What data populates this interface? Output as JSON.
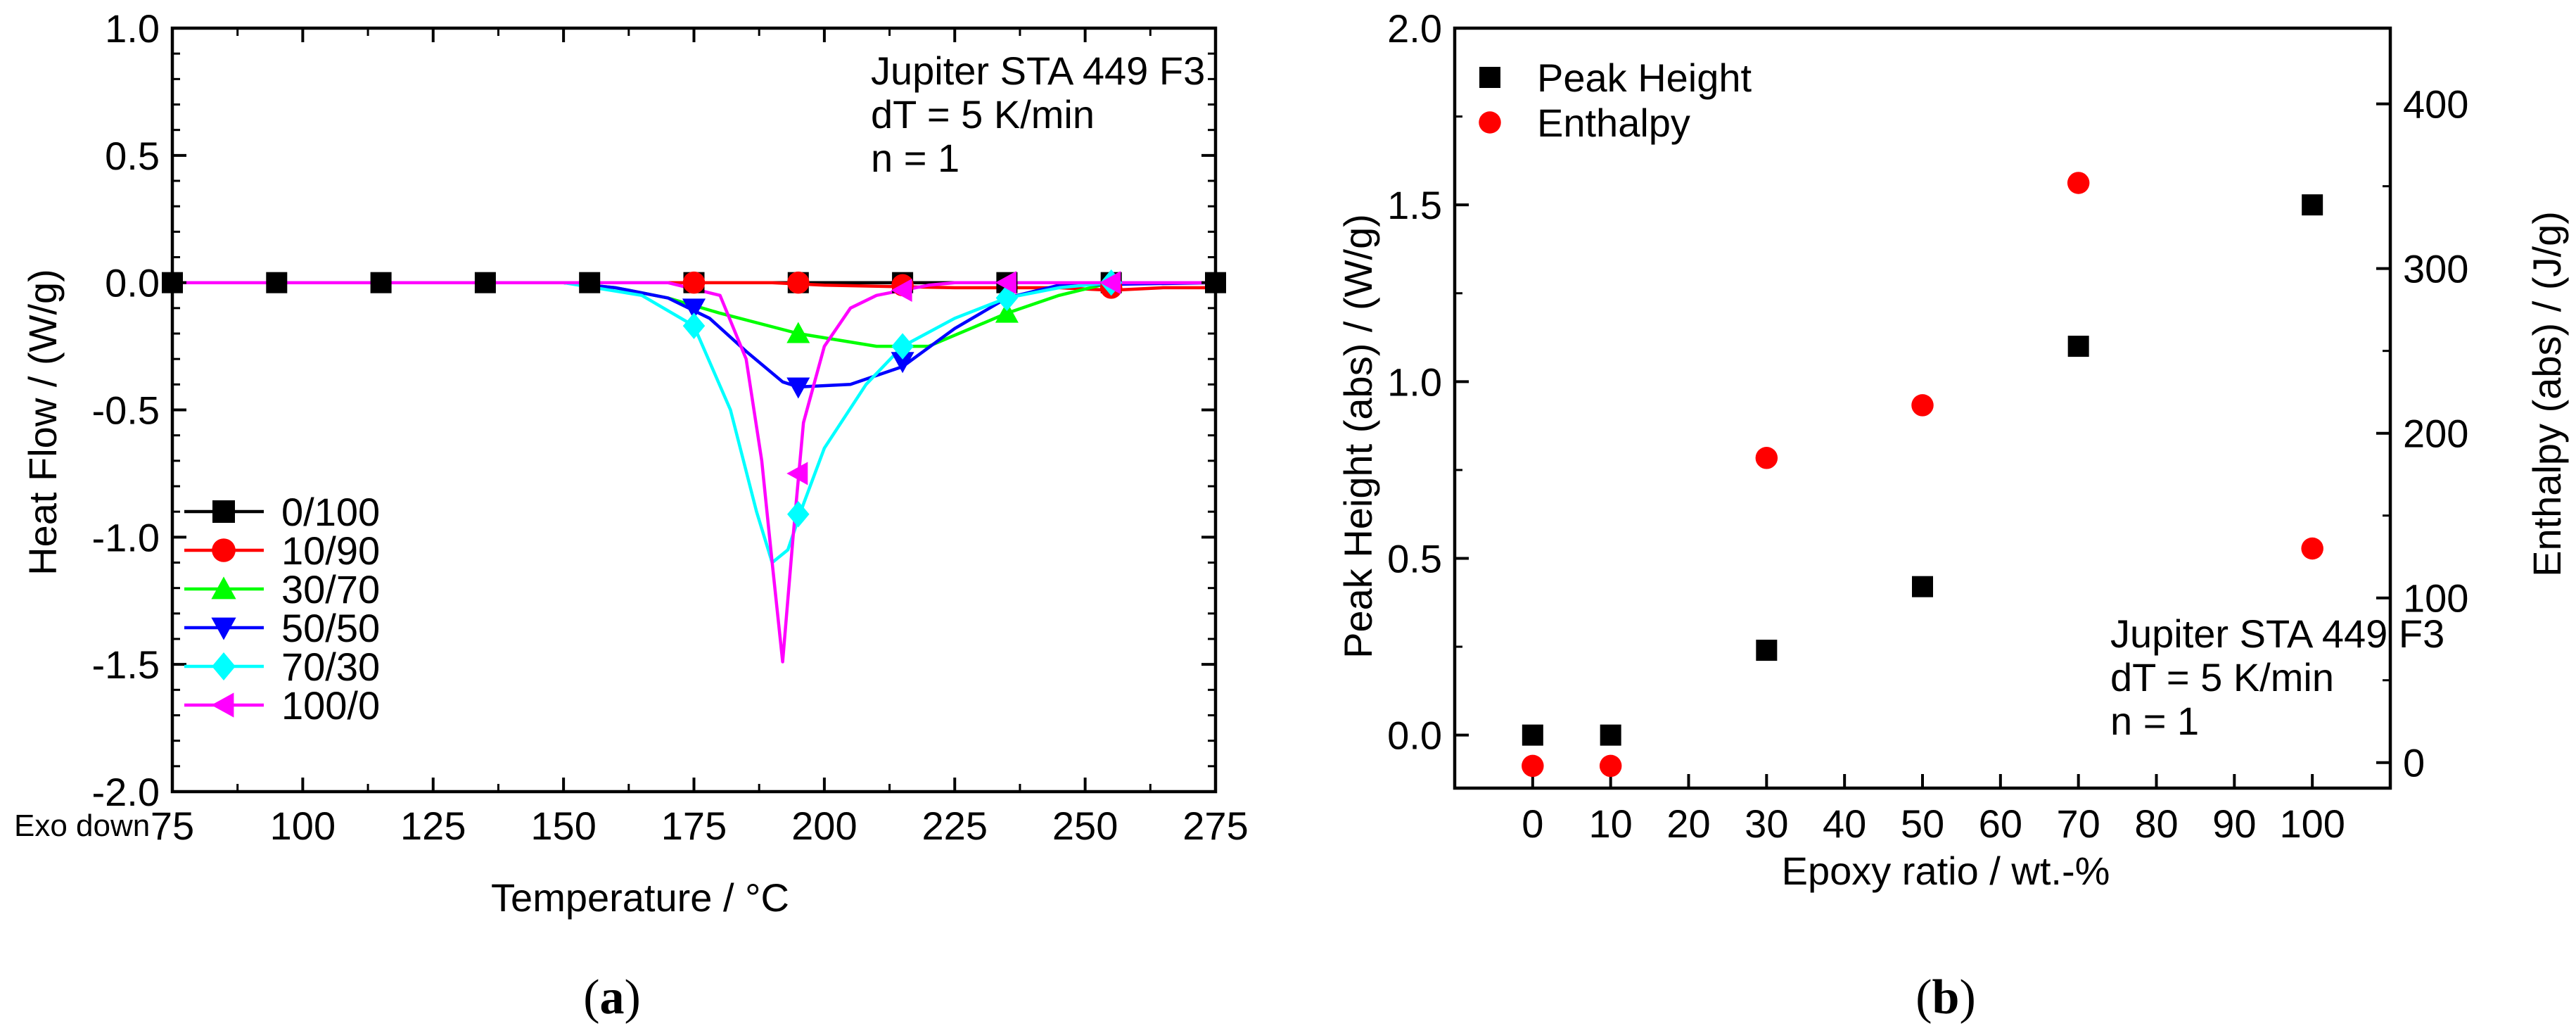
{
  "chart_data": [
    {
      "id": "a",
      "type": "line",
      "panel_label": {
        "open": "(",
        "letter": "a",
        "close": ")"
      },
      "xlabel": "Temperature / °C",
      "ylabel": "Heat Flow / (W/g)",
      "xlim": [
        75,
        275
      ],
      "ylim": [
        -2.0,
        1.0
      ],
      "xticks": [
        75,
        100,
        125,
        150,
        175,
        200,
        225,
        250,
        275
      ],
      "yticks": [
        -2.0,
        -1.5,
        -1.0,
        -0.5,
        0.0,
        0.5,
        1.0
      ],
      "ytick_labels": [
        "-2.0",
        "-1.5",
        "-1.0",
        "-0.5",
        "0.0",
        "0.5",
        "1.0"
      ],
      "corner_note": "Exo down",
      "annotation": [
        "Jupiter STA 449 F3",
        "dT = 5 K/min",
        "n = 1"
      ],
      "legend_position": "bottom-left",
      "series": [
        {
          "name": "0/100",
          "color": "#000000",
          "marker": "square",
          "x": [
            75,
            100,
            125,
            150,
            175,
            200,
            225,
            250,
            275
          ],
          "y": [
            0.0,
            0.0,
            0.0,
            0.0,
            0.0,
            0.0,
            0.0,
            0.0,
            0.0
          ],
          "marker_x": [
            75,
            95,
            115,
            135,
            155,
            175,
            195,
            215,
            235,
            255,
            275
          ],
          "marker_y": [
            0.0,
            0.0,
            0.0,
            0.0,
            0.0,
            0.0,
            0.0,
            0.0,
            0.0,
            0.0,
            0.0
          ]
        },
        {
          "name": "10/90",
          "color": "#ff0000",
          "marker": "circle",
          "x": [
            75,
            150,
            190,
            200,
            225,
            245,
            255,
            265,
            275
          ],
          "y": [
            0.0,
            0.0,
            0.0,
            -0.01,
            -0.02,
            -0.02,
            -0.03,
            -0.02,
            -0.02
          ],
          "marker_x": [
            175,
            195,
            215,
            255
          ],
          "marker_y": [
            0.0,
            0.0,
            -0.01,
            -0.02
          ]
        },
        {
          "name": "30/70",
          "color": "#00ff00",
          "marker": "triangle-up",
          "x": [
            75,
            150,
            160,
            170,
            180,
            195,
            210,
            220,
            235,
            245,
            255,
            275
          ],
          "y": [
            0.0,
            0.0,
            -0.02,
            -0.06,
            -0.12,
            -0.2,
            -0.25,
            -0.25,
            -0.12,
            -0.05,
            0.0,
            0.0
          ],
          "marker_x": [
            195,
            235
          ],
          "marker_y": [
            -0.2,
            -0.12
          ]
        },
        {
          "name": "50/50",
          "color": "#0000ff",
          "marker": "triangle-down",
          "x": [
            75,
            150,
            160,
            170,
            178,
            185,
            192,
            195,
            205,
            215,
            225,
            235,
            245,
            275
          ],
          "y": [
            0.0,
            0.0,
            -0.02,
            -0.06,
            -0.14,
            -0.27,
            -0.39,
            -0.41,
            -0.4,
            -0.33,
            -0.18,
            -0.06,
            -0.01,
            0.0
          ],
          "marker_x": [
            175,
            195,
            215
          ],
          "marker_y": [
            -0.1,
            -0.41,
            -0.31
          ]
        },
        {
          "name": "70/30",
          "color": "#00ffff",
          "marker": "diamond",
          "x": [
            75,
            150,
            165,
            175,
            182,
            187,
            190,
            193,
            196,
            200,
            208,
            215,
            225,
            235,
            245,
            255,
            275
          ],
          "y": [
            0.0,
            0.0,
            -0.05,
            -0.17,
            -0.5,
            -0.9,
            -1.1,
            -1.05,
            -0.87,
            -0.65,
            -0.4,
            -0.25,
            -0.14,
            -0.06,
            -0.02,
            0.0,
            0.0
          ],
          "marker_x": [
            175,
            195,
            215,
            235,
            255
          ],
          "marker_y": [
            -0.17,
            -0.91,
            -0.25,
            -0.06,
            0.0
          ]
        },
        {
          "name": "100/0",
          "color": "#ff00ff",
          "marker": "triangle-left",
          "x": [
            75,
            170,
            180,
            185,
            188,
            190,
            192,
            194,
            196,
            200,
            205,
            210,
            215,
            220,
            225,
            275
          ],
          "y": [
            0.0,
            0.0,
            -0.05,
            -0.3,
            -0.7,
            -1.1,
            -1.49,
            -1.0,
            -0.55,
            -0.25,
            -0.1,
            -0.05,
            -0.03,
            -0.01,
            0.0,
            0.0
          ],
          "marker_x": [
            195,
            215,
            235,
            255
          ],
          "marker_y": [
            -0.75,
            -0.03,
            0.0,
            0.0
          ]
        }
      ]
    },
    {
      "id": "b",
      "type": "scatter",
      "panel_label": {
        "open": "(",
        "letter": "b",
        "close": ")"
      },
      "xlabel": "Epoxy ratio / wt.-%",
      "ylabel": "Peak Height (abs) / (W/g)",
      "y2label": "Enthalpy (abs) / (J/g)",
      "xlim": [
        -10,
        110
      ],
      "ylim": [
        -0.15,
        2.0
      ],
      "y2lim": [
        -15.5,
        446
      ],
      "xticks": [
        0,
        10,
        20,
        30,
        40,
        50,
        60,
        70,
        80,
        90,
        100
      ],
      "yticks": [
        0.0,
        0.5,
        1.0,
        1.5,
        2.0
      ],
      "ytick_labels": [
        "0.0",
        "0.5",
        "1.0",
        "1.5",
        "2.0"
      ],
      "y2ticks": [
        0,
        100,
        200,
        300,
        400
      ],
      "annotation": [
        "Jupiter STA 449 F3",
        "dT = 5 K/min",
        "n = 1"
      ],
      "legend_position": "top-left",
      "series": [
        {
          "name": "Peak Height",
          "color": "#000000",
          "marker": "square",
          "axis": "left",
          "x": [
            0,
            10,
            30,
            50,
            70,
            100
          ],
          "y": [
            0.0,
            0.0,
            0.24,
            0.42,
            1.1,
            1.5
          ]
        },
        {
          "name": "Enthalpy",
          "color": "#ff0000",
          "marker": "circle",
          "axis": "right",
          "x": [
            0,
            10,
            30,
            50,
            70,
            100
          ],
          "y": [
            -2,
            -2,
            185,
            217,
            352,
            130
          ]
        }
      ]
    }
  ]
}
